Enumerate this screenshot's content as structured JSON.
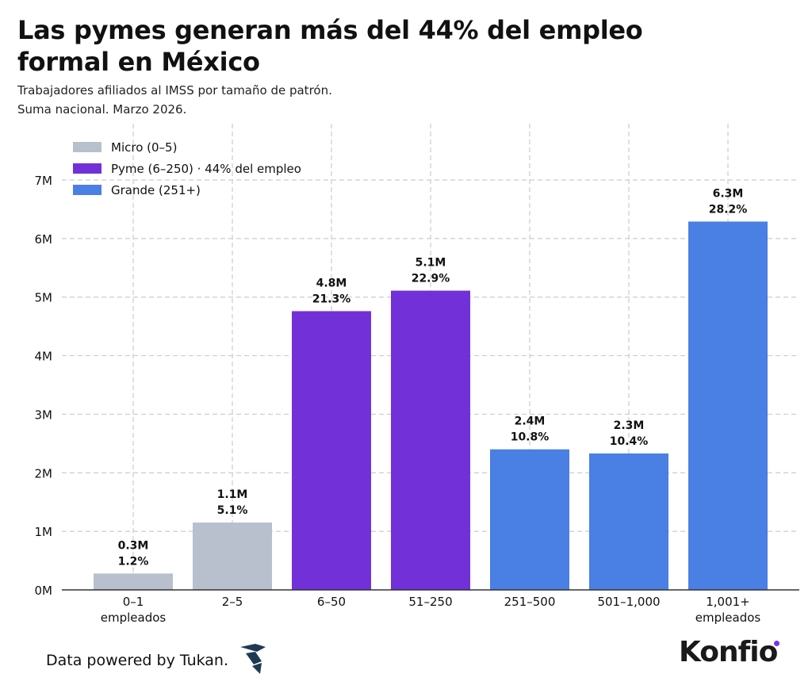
{
  "header": {
    "title": "Las pymes generan más del 44% del empleo formal en México",
    "subtitle_line1": "Trabajadores afiliados al IMSS por tamaño de patrón.",
    "subtitle_line2": "Suma nacional. Marzo 2026."
  },
  "footer": {
    "credit": "Data powered by Tukan.",
    "brand": "Konfio"
  },
  "chart_data": {
    "type": "bar",
    "grid": true,
    "ylim": [
      0,
      7000000
    ],
    "yticks": [
      {
        "value": 0,
        "label": "0M"
      },
      {
        "value": 1000000,
        "label": "1M"
      },
      {
        "value": 2000000,
        "label": "2M"
      },
      {
        "value": 3000000,
        "label": "3M"
      },
      {
        "value": 4000000,
        "label": "4M"
      },
      {
        "value": 5000000,
        "label": "5M"
      },
      {
        "value": 6000000,
        "label": "6M"
      },
      {
        "value": 7000000,
        "label": "7M"
      }
    ],
    "legend_position": "top-left",
    "legend": [
      {
        "label": "Micro (0–5)",
        "color": "#b7c0cc"
      },
      {
        "label": "Pyme (6–250) · 44% del empleo",
        "color": "#7231d8"
      },
      {
        "label": "Grande (251+)",
        "color": "#4a7fe3"
      }
    ],
    "categories": [
      {
        "label": [
          "0–1",
          "empleados"
        ],
        "value": 280000,
        "value_label": "0.3M",
        "pct_label": "1.2%",
        "group": 0
      },
      {
        "label": [
          "2–5"
        ],
        "value": 1150000,
        "value_label": "1.1M",
        "pct_label": "5.1%",
        "group": 0
      },
      {
        "label": [
          "6–50"
        ],
        "value": 4760000,
        "value_label": "4.8M",
        "pct_label": "21.3%",
        "group": 1
      },
      {
        "label": [
          "51–250"
        ],
        "value": 5110000,
        "value_label": "5.1M",
        "pct_label": "22.9%",
        "group": 1
      },
      {
        "label": [
          "251–500"
        ],
        "value": 2400000,
        "value_label": "2.4M",
        "pct_label": "10.8%",
        "group": 2
      },
      {
        "label": [
          "501–1,000"
        ],
        "value": 2330000,
        "value_label": "2.3M",
        "pct_label": "10.4%",
        "group": 2
      },
      {
        "label": [
          "1,001+",
          "empleados"
        ],
        "value": 6290000,
        "value_label": "6.3M",
        "pct_label": "28.2%",
        "group": 2
      }
    ]
  }
}
